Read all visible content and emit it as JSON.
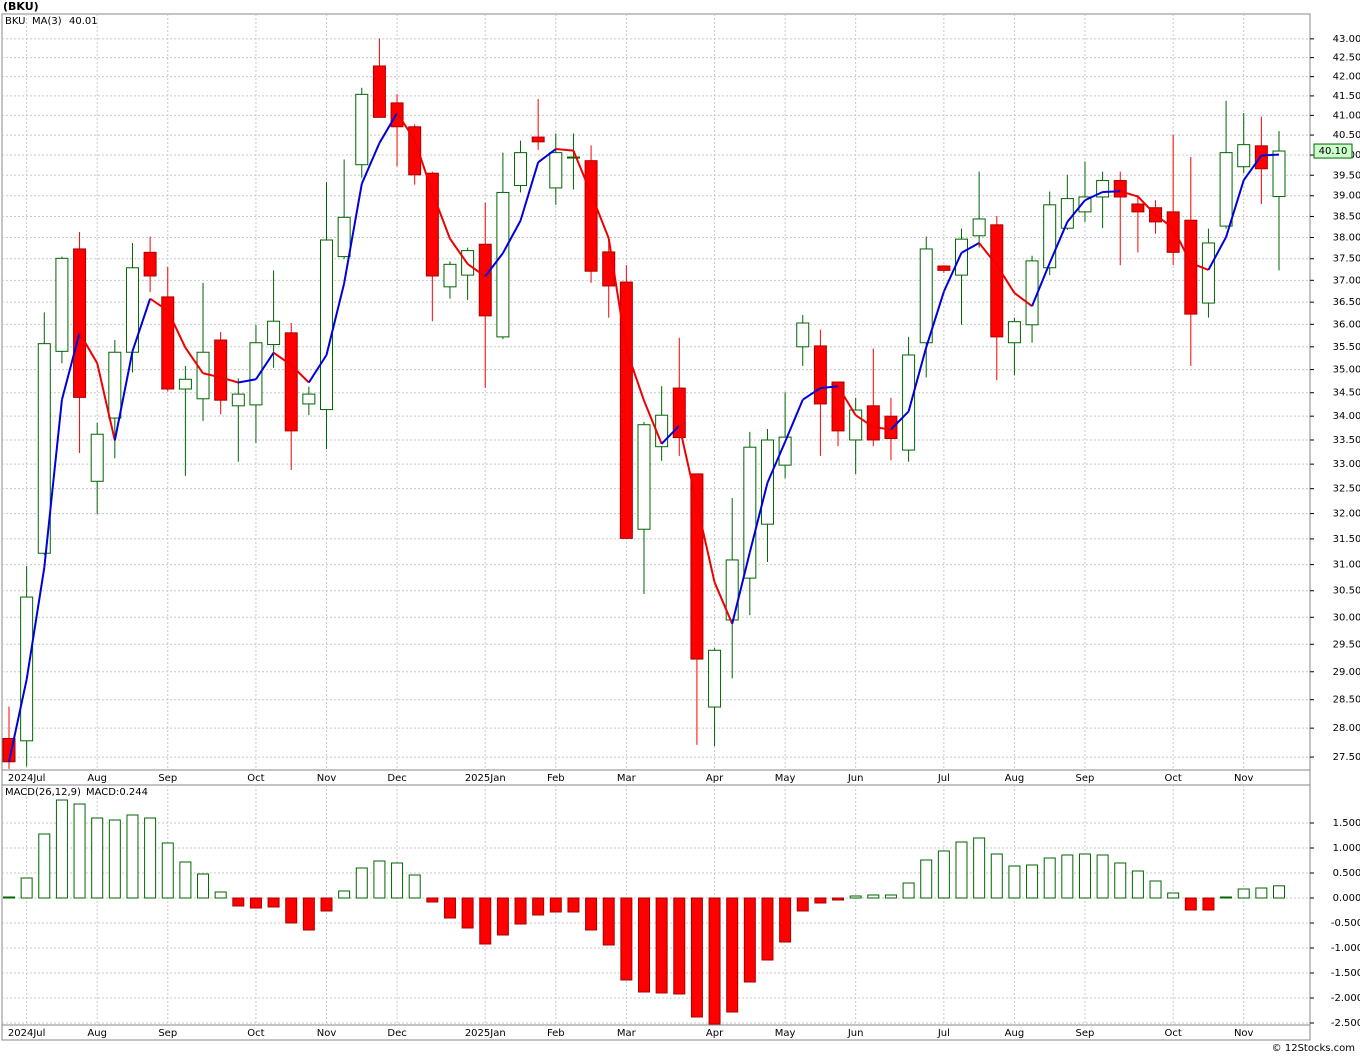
{
  "title": "(BKU)",
  "copyright": "© 12Stocks.com",
  "chart_data": [
    {
      "type": "candlestick",
      "symbol": "BKU",
      "log": true,
      "grid": true,
      "up_color": "#006600",
      "down_color": "#ff0000",
      "categories": [
        null,
        "2024Jul",
        null,
        null,
        null,
        "Aug",
        null,
        null,
        null,
        "Sep",
        null,
        null,
        null,
        null,
        "Oct",
        null,
        null,
        null,
        "Nov",
        null,
        null,
        null,
        "Dec",
        null,
        null,
        null,
        null,
        "2025Jan",
        null,
        null,
        null,
        "Feb",
        null,
        null,
        null,
        "Mar",
        null,
        null,
        null,
        null,
        "Apr",
        null,
        null,
        null,
        "May",
        null,
        null,
        null,
        "Jun",
        null,
        null,
        null,
        null,
        "Jul",
        null,
        null,
        null,
        "Aug",
        null,
        null,
        null,
        "Sep",
        null,
        null,
        null,
        null,
        "Oct",
        null,
        null,
        null,
        "Nov",
        null,
        null
      ],
      "open": [
        27.82,
        27.78,
        31.22,
        35.4,
        37.73,
        32.65,
        33.96,
        35.38,
        37.65,
        36.62,
        34.58,
        34.37,
        35.65,
        34.22,
        34.24,
        35.55,
        35.81,
        34.26,
        34.14,
        37.55,
        39.76,
        42.28,
        41.32,
        40.71,
        39.55,
        36.85,
        37.12,
        37.84,
        35.72,
        39.25,
        40.45,
        39.19,
        39.94,
        39.86,
        37.66,
        36.96,
        31.69,
        33.36,
        34.6,
        32.8,
        28.37,
        29.95,
        30.74,
        31.79,
        32.98,
        35.5,
        35.52,
        34.73,
        33.5,
        34.22,
        34.0,
        33.29,
        35.59,
        37.33,
        37.12,
        38.04,
        38.3,
        35.59,
        35.99,
        37.29,
        38.22,
        38.61,
        38.97,
        39.37,
        38.8,
        38.71,
        38.61,
        38.41,
        36.48,
        38.27,
        39.71,
        40.23,
        38.98
      ],
      "high": [
        28.38,
        30.97,
        36.27,
        37.55,
        38.13,
        33.86,
        35.65,
        37.87,
        38.02,
        37.31,
        35.08,
        36.94,
        35.83,
        34.81,
        35.99,
        37.23,
        36.03,
        34.63,
        39.33,
        39.89,
        41.71,
        43.01,
        41.54,
        40.77,
        39.59,
        37.44,
        37.76,
        38.83,
        40.06,
        40.36,
        41.42,
        40.54,
        40.54,
        40.24,
        38.02,
        37.35,
        33.88,
        34.64,
        35.7,
        32.81,
        29.43,
        32.31,
        33.67,
        33.73,
        34.51,
        36.21,
        35.88,
        34.73,
        34.39,
        35.46,
        34.39,
        35.72,
        38.02,
        37.35,
        38.21,
        39.59,
        38.51,
        36.15,
        37.57,
        39.1,
        39.51,
        39.84,
        39.59,
        39.59,
        39.02,
        38.89,
        40.51,
        39.95,
        38.21,
        41.37,
        41.06,
        40.97,
        40.6
      ],
      "low": [
        27.3,
        27.34,
        31.18,
        35.14,
        33.23,
        31.99,
        33.12,
        34.94,
        36.73,
        34.53,
        32.76,
        33.9,
        34.04,
        33.05,
        33.44,
        35.04,
        32.88,
        34.02,
        33.31,
        37.49,
        39.44,
        40.95,
        39.72,
        39.27,
        36.07,
        36.58,
        36.55,
        34.61,
        35.67,
        39.08,
        40.13,
        38.78,
        39.15,
        36.94,
        36.15,
        31.65,
        30.44,
        33.07,
        33.17,
        27.71,
        27.69,
        28.88,
        30.04,
        31.05,
        32.71,
        35.08,
        33.17,
        33.37,
        32.8,
        33.37,
        33.08,
        33.05,
        34.83,
        37.17,
        35.99,
        37.76,
        34.77,
        34.88,
        35.59,
        37.12,
        38.18,
        38.37,
        38.22,
        37.35,
        37.65,
        38.09,
        37.35,
        35.08,
        36.15,
        38.21,
        39.55,
        38.8,
        37.23
      ],
      "close": [
        27.42,
        30.38,
        35.57,
        37.51,
        34.4,
        33.62,
        35.38,
        37.29,
        37.1,
        34.58,
        34.79,
        35.38,
        34.34,
        34.47,
        35.59,
        36.07,
        33.69,
        34.47,
        37.94,
        38.48,
        41.54,
        40.95,
        40.71,
        39.51,
        37.1,
        37.37,
        37.69,
        36.19,
        39.08,
        40.06,
        40.33,
        40.06,
        39.95,
        37.21,
        36.87,
        31.51,
        33.82,
        34.02,
        33.55,
        29.23,
        29.39,
        31.09,
        33.35,
        33.5,
        33.56,
        36.03,
        34.26,
        33.69,
        34.13,
        33.5,
        33.53,
        35.32,
        37.73,
        37.23,
        37.96,
        38.44,
        35.72,
        36.06,
        37.45,
        38.78,
        38.93,
        38.97,
        39.37,
        38.97,
        38.61,
        38.37,
        37.65,
        36.23,
        37.87,
        40.06,
        40.26,
        39.66,
        40.1
      ],
      "ma": {
        "name": "MA(3)",
        "last_label": "40.01",
        "rising_color": "#0000dd",
        "falling_color": "#ee0000",
        "values": [
          27.42,
          28.86,
          30.94,
          34.35,
          35.81,
          35.14,
          33.49,
          35.4,
          36.58,
          36.31,
          35.48,
          34.92,
          34.83,
          34.72,
          34.79,
          35.37,
          35.1,
          34.72,
          35.32,
          36.93,
          39.29,
          40.3,
          41.06,
          40.38,
          39.08,
          37.97,
          37.38,
          37.09,
          37.63,
          38.4,
          39.82,
          40.15,
          40.11,
          39.05,
          37.98,
          35.44,
          34.33,
          33.42,
          33.8,
          32.19,
          30.66,
          29.88,
          31.24,
          32.62,
          33.46,
          34.35,
          34.6,
          34.64,
          34.02,
          33.77,
          33.72,
          34.1,
          35.49,
          36.74,
          37.64,
          37.87,
          37.35,
          36.71,
          36.41,
          37.4,
          38.37,
          38.89,
          39.09,
          39.11,
          38.98,
          38.54,
          38.22,
          37.4,
          37.24,
          38.01,
          39.38,
          39.99,
          40.01
        ]
      },
      "last_price": {
        "value": 40.1,
        "label": "40.10"
      },
      "ylim": [
        27.28,
        43.67
      ],
      "yticks": [
        {
          "value": 27.5,
          "label": "27.50"
        },
        {
          "value": 28,
          "label": "28.00"
        },
        {
          "value": 28.5,
          "label": "28.50"
        },
        {
          "value": 29,
          "label": "29.00"
        },
        {
          "value": 29.5,
          "label": "29.50"
        },
        {
          "value": 30,
          "label": "30.00"
        },
        {
          "value": 30.5,
          "label": "30.50"
        },
        {
          "value": 31,
          "label": "31.00"
        },
        {
          "value": 31.5,
          "label": "31.50"
        },
        {
          "value": 32,
          "label": "32.00"
        },
        {
          "value": 32.5,
          "label": "32.50"
        },
        {
          "value": 33,
          "label": "33.00"
        },
        {
          "value": 33.5,
          "label": "33.50"
        },
        {
          "value": 34,
          "label": "34.00"
        },
        {
          "value": 34.5,
          "label": "34.50"
        },
        {
          "value": 35,
          "label": "35.00"
        },
        {
          "value": 35.5,
          "label": "35.50"
        },
        {
          "value": 36,
          "label": "36.00"
        },
        {
          "value": 36.5,
          "label": "36.50"
        },
        {
          "value": 37,
          "label": "37.00"
        },
        {
          "value": 37.5,
          "label": "37.50"
        },
        {
          "value": 38,
          "label": "38.00"
        },
        {
          "value": 38.5,
          "label": "38.50"
        },
        {
          "value": 39,
          "label": "39.00"
        },
        {
          "value": 39.5,
          "label": "39.50"
        },
        {
          "value": 40,
          "label": "40.00"
        },
        {
          "value": 40.5,
          "label": "40.50"
        },
        {
          "value": 41,
          "label": "41.00"
        },
        {
          "value": 41.5,
          "label": "41.50"
        },
        {
          "value": 42,
          "label": "42.00"
        },
        {
          "value": 42.5,
          "label": "42.50"
        },
        {
          "value": 43,
          "label": "43.00"
        }
      ]
    },
    {
      "type": "histogram",
      "name": "MACD(26,12,9)",
      "label": "MACD:0.244",
      "grid": true,
      "positive_color": "#006600",
      "negative_color": "#ff0000",
      "categories": [
        null,
        "2024Jul",
        null,
        null,
        null,
        "Aug",
        null,
        null,
        null,
        "Sep",
        null,
        null,
        null,
        null,
        "Oct",
        null,
        null,
        null,
        "Nov",
        null,
        null,
        null,
        "Dec",
        null,
        null,
        null,
        null,
        "2025Jan",
        null,
        null,
        null,
        "Feb",
        null,
        null,
        null,
        "Mar",
        null,
        null,
        null,
        null,
        "Apr",
        null,
        null,
        null,
        "May",
        null,
        null,
        null,
        "Jun",
        null,
        null,
        null,
        null,
        "Jul",
        null,
        null,
        null,
        "Aug",
        null,
        null,
        null,
        "Sep",
        null,
        null,
        null,
        null,
        "Oct",
        null,
        null,
        null,
        "Nov",
        null,
        null
      ],
      "values": [
        0.02,
        0.4,
        1.28,
        1.96,
        1.88,
        1.6,
        1.56,
        1.66,
        1.6,
        1.1,
        0.72,
        0.48,
        0.12,
        -0.16,
        -0.2,
        -0.18,
        -0.5,
        -0.64,
        -0.26,
        0.14,
        0.6,
        0.74,
        0.7,
        0.46,
        -0.08,
        -0.4,
        -0.6,
        -0.92,
        -0.74,
        -0.52,
        -0.34,
        -0.28,
        -0.28,
        -0.64,
        -0.94,
        -1.64,
        -1.88,
        -1.9,
        -1.92,
        -2.38,
        -2.52,
        -2.28,
        -1.68,
        -1.24,
        -0.88,
        -0.26,
        -0.1,
        -0.04,
        0.04,
        0.06,
        0.06,
        0.3,
        0.76,
        0.94,
        1.12,
        1.2,
        0.88,
        0.64,
        0.66,
        0.8,
        0.86,
        0.88,
        0.86,
        0.7,
        0.54,
        0.34,
        0.1,
        -0.24,
        -0.24,
        0.02,
        0.18,
        0.2,
        0.244
      ],
      "ylim": [
        -2.54,
        2.26
      ],
      "yticks": [
        {
          "value": 1.5,
          "label": "1.500"
        },
        {
          "value": 1,
          "label": "1.000"
        },
        {
          "value": 0.5,
          "label": "0.500"
        },
        {
          "value": 0,
          "label": "0.000"
        },
        {
          "value": -0.5,
          "label": "-0.500"
        },
        {
          "value": -1,
          "label": "-1.000"
        },
        {
          "value": -1.5,
          "label": "-1.500"
        },
        {
          "value": -2,
          "label": "-2.000"
        },
        {
          "value": -2.5,
          "label": "-2.500"
        }
      ]
    }
  ]
}
